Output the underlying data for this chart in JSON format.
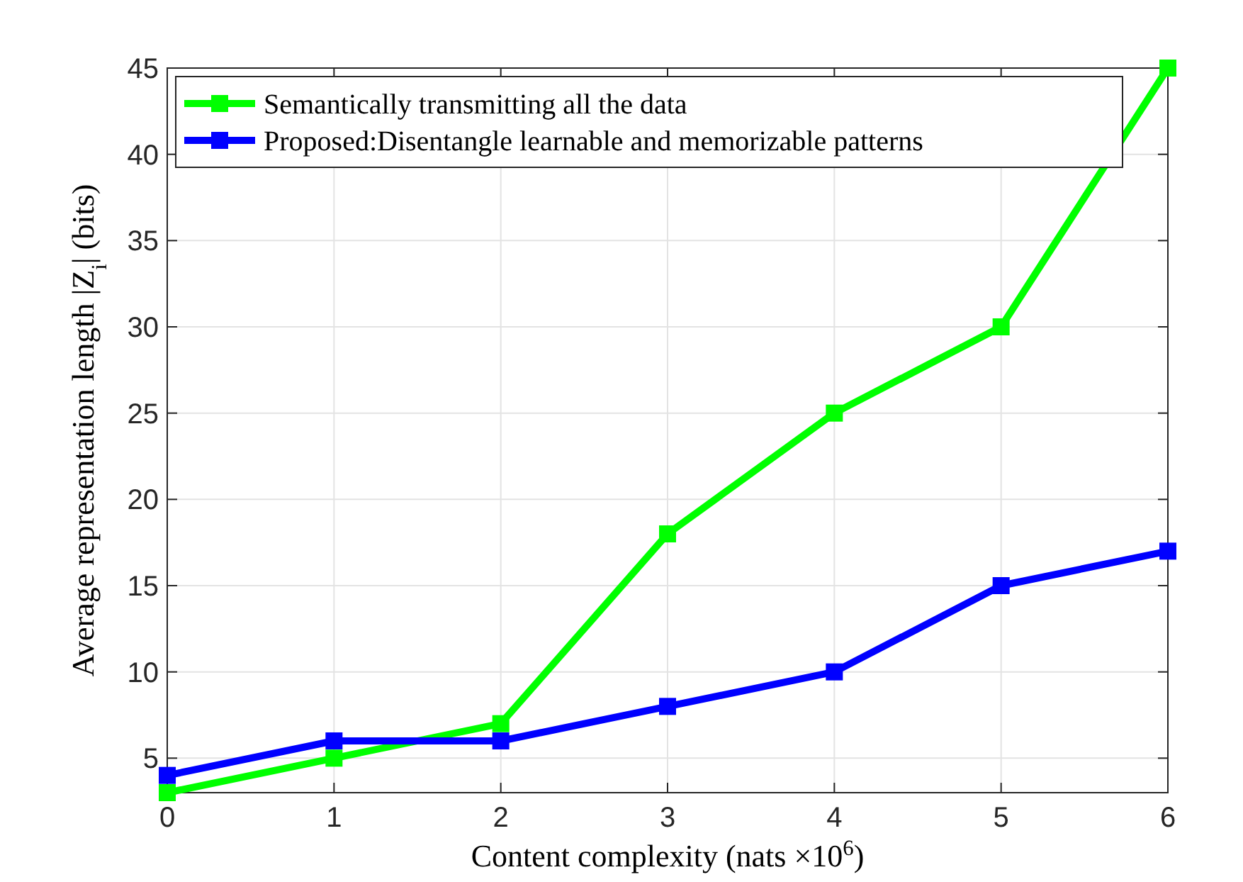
{
  "chart_data": {
    "type": "line",
    "xlabel": "Content complexity (nats ×10$^{6}$)",
    "ylabel": "Average representation length |Z$_{i}$| (bits)",
    "x": [
      0,
      1,
      2,
      3,
      4,
      5,
      6
    ],
    "series": [
      {
        "name": "Semantically transmitting all the data",
        "color": "#00ff00",
        "values": [
          3,
          5,
          7,
          18,
          25,
          30,
          45
        ]
      },
      {
        "name": "Proposed:Disentangle learnable and memorizable patterns",
        "color": "#0000ff",
        "values": [
          4,
          6,
          6,
          8,
          10,
          15,
          17
        ]
      }
    ],
    "xlim": [
      0,
      6
    ],
    "xticks": [
      0,
      1,
      2,
      3,
      4,
      5,
      6
    ],
    "ylim": [
      3,
      45
    ],
    "yticks": [
      5,
      10,
      15,
      20,
      25,
      30,
      35,
      40,
      45
    ],
    "grid": true,
    "legend": "top left",
    "marker": "square",
    "line_style": "solid"
  }
}
